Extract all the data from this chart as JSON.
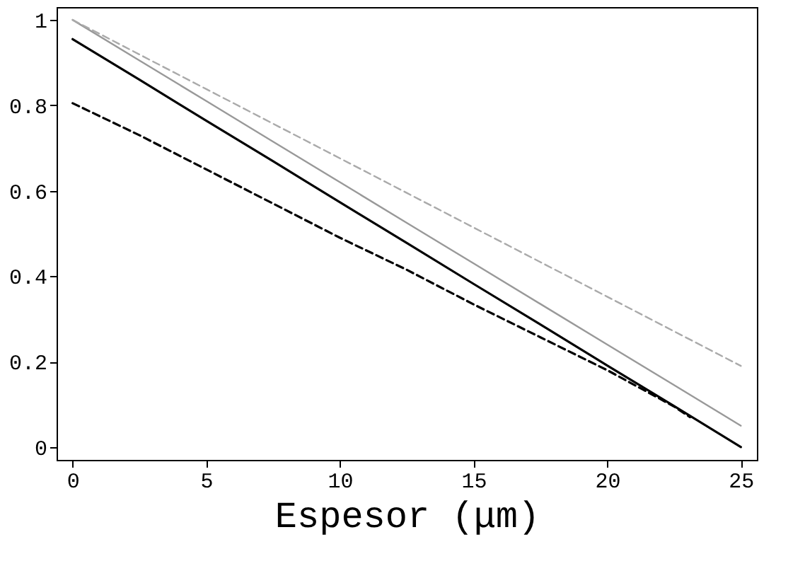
{
  "chart_data": {
    "type": "line",
    "xlabel": "Espesor (μm)",
    "x": [
      0,
      2.5,
      5,
      7.5,
      10,
      12.5,
      15,
      17.5,
      20,
      22.5,
      23.1,
      25
    ],
    "series": [
      {
        "color": "#000000",
        "line_style": "solid",
        "values": [
          0.955,
          0.86,
          0.764,
          0.669,
          0.573,
          0.478,
          0.382,
          0.287,
          0.191,
          0.096,
          null,
          0
        ]
      },
      {
        "color": "#999999",
        "line_style": "solid",
        "values": [
          1.0,
          0.905,
          0.81,
          0.715,
          0.62,
          0.525,
          0.43,
          0.335,
          0.24,
          0.145,
          null,
          0.05
        ]
      },
      {
        "color": "#aaaaaa",
        "line_style": "dashed",
        "values": [
          1.0,
          0.919,
          0.838,
          0.757,
          0.676,
          0.595,
          0.514,
          0.433,
          0.352,
          0.271,
          null,
          0.19
        ]
      },
      {
        "color": "#000000",
        "line_style": "dashed",
        "values": [
          0.805,
          0.73,
          0.65,
          0.57,
          0.49,
          0.415,
          0.334,
          0.257,
          0.18,
          0.095,
          0.07,
          null
        ]
      }
    ],
    "xlim": [
      -0.6,
      25.6
    ],
    "ylim": [
      -0.03,
      1.03
    ],
    "xticks": [
      0,
      5,
      10,
      15,
      20,
      25
    ],
    "yticks": [
      0,
      0.2,
      0.4,
      0.6,
      0.8,
      1
    ],
    "grid": false
  }
}
